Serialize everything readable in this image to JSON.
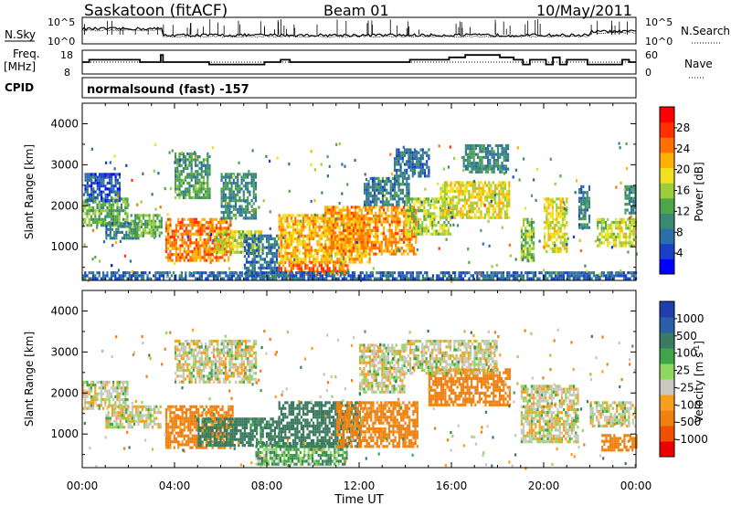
{
  "header": {
    "title": "Saskatoon (fitACF)",
    "beam": "Beam 01",
    "date": "10/May/2011"
  },
  "noise_panel": {
    "left_label": "N.Sky",
    "right_label": "N.Search",
    "left_ticks": [
      "10^5",
      "10^0"
    ],
    "right_ticks": [
      "10^5",
      "10^0"
    ]
  },
  "freq_panel": {
    "left_label_1": "Freq.",
    "left_label_2": "[MHz]",
    "right_label": "Nave",
    "left_ticks": [
      "18",
      "8"
    ],
    "right_ticks": [
      "60",
      "0"
    ]
  },
  "cpid_panel": {
    "label": "CPID",
    "program": "normalsound (fast) -157"
  },
  "time_axis": {
    "label": "Time UT",
    "ticks": [
      "00:00",
      "04:00",
      "08:00",
      "12:00",
      "16:00",
      "20:00",
      "00:00"
    ]
  },
  "colors": {
    "power": [
      "#0000ff",
      "#1a40c8",
      "#2e6ea6",
      "#3a8a72",
      "#4fa64a",
      "#9ccd3a",
      "#f0e020",
      "#ffb000",
      "#ff7000",
      "#ff3000",
      "#ff0000"
    ],
    "velocity": [
      "#1f3fb0",
      "#2a5fa8",
      "#3a7a60",
      "#3fa548",
      "#8ed860",
      "#c8c8c0",
      "#f7a020",
      "#f08010",
      "#f05000",
      "#ee0000"
    ]
  },
  "chart_data": [
    {
      "type": "line",
      "name": "noise",
      "x_unit": "UT hours",
      "xlim": [
        0,
        24
      ],
      "y_scale": "log",
      "ylim": [
        "10^0",
        "10^5"
      ]
    },
    {
      "type": "line",
      "name": "frequency_nave",
      "series": [
        {
          "name": "Freq.",
          "unit": "MHz",
          "ylim": [
            8,
            18
          ],
          "steps": [
            [
              0,
              13
            ],
            [
              0.3,
              14
            ],
            [
              2.5,
              13
            ],
            [
              3.4,
              16
            ],
            [
              3.5,
              13
            ],
            [
              4.6,
              13
            ],
            [
              5.5,
              12
            ],
            [
              7.6,
              12
            ],
            [
              7.9,
              13
            ],
            [
              8.6,
              14
            ],
            [
              9.0,
              13
            ],
            [
              10.9,
              13
            ],
            [
              11.4,
              13
            ],
            [
              13.8,
              13
            ],
            [
              14.2,
              14
            ],
            [
              15.6,
              14
            ],
            [
              15.9,
              15
            ],
            [
              16.6,
              16
            ],
            [
              17.9,
              16
            ],
            [
              18.1,
              15
            ],
            [
              18.7,
              14
            ],
            [
              19.1,
              12
            ],
            [
              19.4,
              14
            ],
            [
              19.7,
              14
            ],
            [
              20.1,
              12
            ],
            [
              20.4,
              15
            ],
            [
              20.7,
              12
            ],
            [
              21.0,
              14
            ],
            [
              21.3,
              14
            ],
            [
              21.6,
              14
            ],
            [
              21.9,
              12
            ],
            [
              22.7,
              12
            ],
            [
              23.4,
              14
            ],
            [
              23.7,
              13
            ],
            [
              24,
              13
            ]
          ]
        },
        {
          "name": "Nave",
          "ylim": [
            0,
            60
          ],
          "level": 30
        }
      ]
    },
    {
      "type": "heatmap",
      "name": "power",
      "ylabel": "Slant Range [km]",
      "xlabel": "Time UT",
      "ylim": [
        180,
        4500
      ],
      "yticks": [
        1000,
        2000,
        3000,
        4000
      ],
      "xticks": [
        "00:00",
        "04:00",
        "08:00",
        "12:00",
        "16:00",
        "20:00",
        "00:00"
      ],
      "colorbar": {
        "label": "Power [dB]",
        "ticks": [
          4,
          8,
          12,
          16,
          20,
          24,
          28
        ]
      },
      "blobs": [
        {
          "t0": 0.0,
          "t1": 2.0,
          "r0": 1500,
          "r1": 2200,
          "v": 14
        },
        {
          "t0": 0.1,
          "t1": 1.6,
          "r0": 2100,
          "r1": 2800,
          "v": 6
        },
        {
          "t0": 1.0,
          "t1": 2.4,
          "r0": 1200,
          "r1": 1600,
          "v": 9
        },
        {
          "t0": 2.0,
          "t1": 3.4,
          "r0": 1250,
          "r1": 1800,
          "v": 14
        },
        {
          "t0": 3.6,
          "t1": 6.4,
          "r0": 700,
          "r1": 1700,
          "v": 25
        },
        {
          "t0": 5.8,
          "t1": 7.8,
          "r0": 900,
          "r1": 1400,
          "v": 18
        },
        {
          "t0": 4.0,
          "t1": 5.5,
          "r0": 2200,
          "r1": 3300,
          "v": 12
        },
        {
          "t0": 6.0,
          "t1": 7.5,
          "r0": 1700,
          "r1": 2800,
          "v": 10
        },
        {
          "t0": 7.0,
          "t1": 8.5,
          "r0": 300,
          "r1": 1300,
          "v": 8
        },
        {
          "t0": 8.5,
          "t1": 11.5,
          "r0": 300,
          "r1": 650,
          "v": 26
        },
        {
          "t0": 8.5,
          "t1": 12.5,
          "r0": 650,
          "r1": 1800,
          "v": 22
        },
        {
          "t0": 10.5,
          "t1": 14.5,
          "r0": 800,
          "r1": 2000,
          "v": 24
        },
        {
          "t0": 12.2,
          "t1": 14.2,
          "r0": 2000,
          "r1": 2700,
          "v": 9
        },
        {
          "t0": 14.0,
          "t1": 16.0,
          "r0": 1300,
          "r1": 2200,
          "v": 17
        },
        {
          "t0": 15.5,
          "t1": 18.5,
          "r0": 1700,
          "r1": 2600,
          "v": 19
        },
        {
          "t0": 16.5,
          "t1": 18.5,
          "r0": 2800,
          "r1": 3500,
          "v": 10
        },
        {
          "t0": 13.5,
          "t1": 15.0,
          "r0": 2700,
          "r1": 3400,
          "v": 8
        },
        {
          "t0": 19.0,
          "t1": 19.6,
          "r0": 700,
          "r1": 1700,
          "v": 15
        },
        {
          "t0": 20.0,
          "t1": 21.0,
          "r0": 900,
          "r1": 2200,
          "v": 19
        },
        {
          "t0": 21.5,
          "t1": 22.0,
          "r0": 1500,
          "r1": 2500,
          "v": 9
        },
        {
          "t0": 22.3,
          "t1": 24.0,
          "r0": 1000,
          "r1": 1700,
          "v": 18
        },
        {
          "t0": 23.5,
          "t1": 24.0,
          "r0": 1800,
          "r1": 2500,
          "v": 10
        },
        {
          "t0": 0.0,
          "t1": 24.0,
          "r0": 200,
          "r1": 400,
          "v": 7
        }
      ]
    },
    {
      "type": "heatmap",
      "name": "velocity",
      "ylabel": "Slant Range [km]",
      "xlabel": "Time UT",
      "ylim": [
        180,
        4500
      ],
      "yticks": [
        1000,
        2000,
        3000,
        4000
      ],
      "xticks": [
        "00:00",
        "04:00",
        "08:00",
        "12:00",
        "16:00",
        "20:00",
        "00:00"
      ],
      "colorbar": {
        "label": "Velocity [m s-1]",
        "ticks": [
          1000,
          500,
          100,
          25,
          -25,
          -100,
          -500,
          -1000
        ]
      },
      "blobs": [
        {
          "t0": 0.0,
          "t1": 2.0,
          "r0": 1600,
          "r1": 2300,
          "v": 0
        },
        {
          "t0": 1.0,
          "t1": 3.4,
          "r0": 1200,
          "r1": 1700,
          "v": 0
        },
        {
          "t0": 3.6,
          "t1": 6.5,
          "r0": 700,
          "r1": 1700,
          "v": -150
        },
        {
          "t0": 5.0,
          "t1": 8.5,
          "r0": 700,
          "r1": 1400,
          "v": 150
        },
        {
          "t0": 4.0,
          "t1": 7.5,
          "r0": 2300,
          "r1": 3300,
          "v": 0
        },
        {
          "t0": 7.5,
          "t1": 11.5,
          "r0": 250,
          "r1": 800,
          "v": 70
        },
        {
          "t0": 8.5,
          "t1": 12.0,
          "r0": 700,
          "r1": 1800,
          "v": 200
        },
        {
          "t0": 11.0,
          "t1": 14.5,
          "r0": 700,
          "r1": 1800,
          "v": -150
        },
        {
          "t0": 12.0,
          "t1": 14.0,
          "r0": 2000,
          "r1": 3200,
          "v": 0
        },
        {
          "t0": 15.0,
          "t1": 18.5,
          "r0": 1700,
          "r1": 2600,
          "v": -200
        },
        {
          "t0": 14.0,
          "t1": 18.0,
          "r0": 2500,
          "r1": 3300,
          "v": 0
        },
        {
          "t0": 19.0,
          "t1": 21.5,
          "r0": 800,
          "r1": 2200,
          "v": 0
        },
        {
          "t0": 22.0,
          "t1": 24.0,
          "r0": 1200,
          "r1": 1800,
          "v": 0
        },
        {
          "t0": 22.5,
          "t1": 24.0,
          "r0": 600,
          "r1": 1000,
          "v": -200
        }
      ]
    }
  ]
}
